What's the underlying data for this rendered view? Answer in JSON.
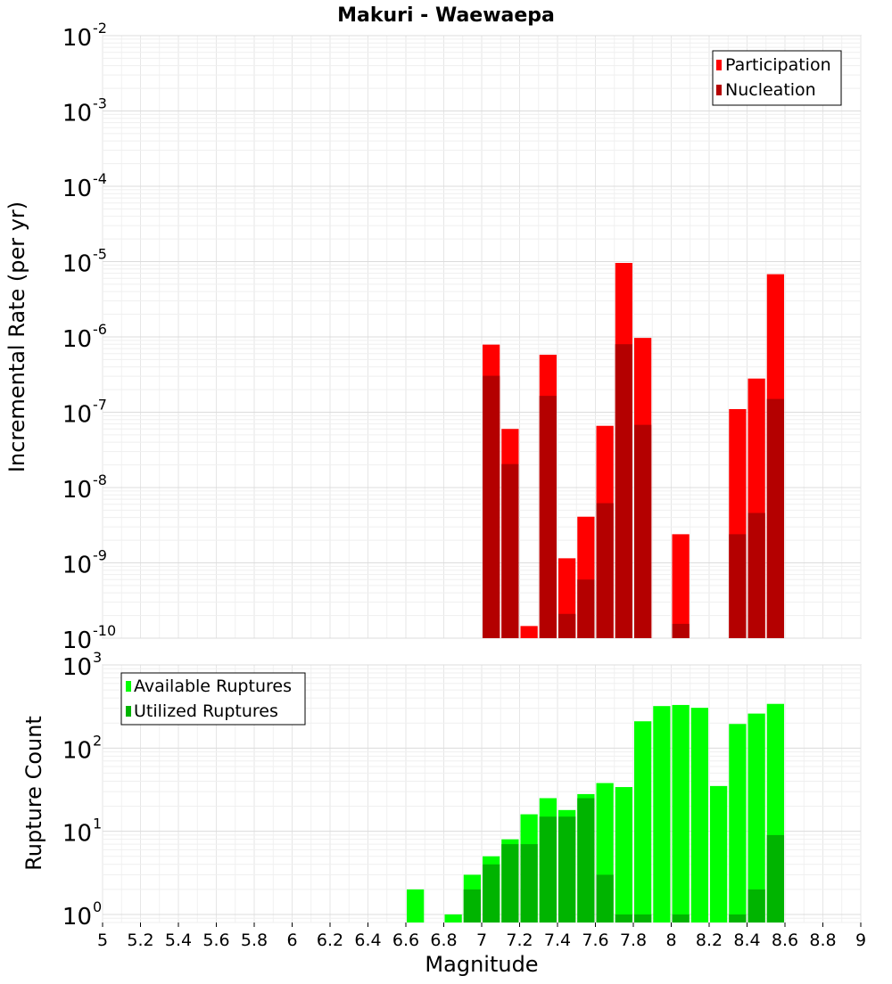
{
  "chart_data": [
    {
      "type": "bar",
      "title": "Makuri - Waewaepa",
      "ylabel": "Incremental Rate (per yr)",
      "xlabel": "",
      "y_scale": "log",
      "ylim": [
        1e-10,
        0.01
      ],
      "xlim": [
        5,
        9
      ],
      "y_tick_labels": [
        {
          "base": "10",
          "exp": "-2"
        },
        {
          "base": "10",
          "exp": "-3"
        },
        {
          "base": "10",
          "exp": "-4"
        },
        {
          "base": "10",
          "exp": "-5"
        },
        {
          "base": "10",
          "exp": "-6"
        },
        {
          "base": "10",
          "exp": "-7"
        },
        {
          "base": "10",
          "exp": "-8"
        },
        {
          "base": "10",
          "exp": "-9"
        },
        {
          "base": "10",
          "exp": "-10"
        }
      ],
      "grid": true,
      "legend": {
        "position": "top-right"
      },
      "series": [
        {
          "name": "Participation",
          "color": "#ff0000",
          "x": [
            7.05,
            7.15,
            7.25,
            7.35,
            7.45,
            7.55,
            7.65,
            7.75,
            7.85,
            8.05,
            8.35,
            8.45,
            8.55
          ],
          "values": [
            7.9e-07,
            6e-08,
            1.45e-10,
            5.8e-07,
            1.15e-09,
            4.1e-09,
            6.6e-08,
            9.6e-06,
            9.7e-07,
            2.4e-09,
            1.1e-07,
            2.8e-07,
            6.8e-06
          ]
        },
        {
          "name": "Nucleation",
          "color": "#b40000",
          "x": [
            7.05,
            7.15,
            7.35,
            7.45,
            7.55,
            7.65,
            7.75,
            7.85,
            8.05,
            8.35,
            8.45,
            8.55
          ],
          "values": [
            3.05e-07,
            2.05e-08,
            1.65e-07,
            2.1e-10,
            6e-10,
            6.2e-09,
            8e-07,
            6.8e-08,
            1.55e-10,
            2.4e-09,
            4.6e-09,
            1.5e-07
          ]
        }
      ]
    },
    {
      "type": "bar",
      "title": "",
      "ylabel": "Rupture Count",
      "xlabel": "Magnitude",
      "y_scale": "log",
      "ylim": [
        0.8,
        1000
      ],
      "xlim": [
        5,
        9
      ],
      "x_ticks": [
        "5",
        "5.2",
        "5.4",
        "5.6",
        "5.8",
        "6",
        "6.2",
        "6.4",
        "6.6",
        "6.8",
        "7",
        "7.2",
        "7.4",
        "7.6",
        "7.8",
        "8",
        "8.2",
        "8.4",
        "8.6",
        "8.8",
        "9"
      ],
      "y_tick_labels": [
        {
          "base": "10",
          "exp": "3"
        },
        {
          "base": "10",
          "exp": "2"
        },
        {
          "base": "10",
          "exp": "1"
        },
        {
          "base": "10",
          "exp": "0"
        }
      ],
      "grid": true,
      "legend": {
        "position": "top-left"
      },
      "series": [
        {
          "name": "Available Ruptures",
          "color": "#00ff00",
          "x": [
            6.65,
            6.85,
            6.95,
            7.05,
            7.15,
            7.25,
            7.35,
            7.45,
            7.55,
            7.65,
            7.75,
            7.85,
            7.95,
            8.05,
            8.15,
            8.25,
            8.35,
            8.45,
            8.55
          ],
          "values": [
            2,
            1,
            3,
            5,
            8,
            16,
            25,
            18,
            28,
            38,
            34,
            210,
            320,
            330,
            305,
            35,
            195,
            260,
            340
          ]
        },
        {
          "name": "Utilized Ruptures",
          "color": "#00b400",
          "x": [
            6.95,
            7.05,
            7.15,
            7.25,
            7.35,
            7.45,
            7.55,
            7.65,
            7.75,
            7.85,
            8.05,
            8.35,
            8.45,
            8.55
          ],
          "values": [
            2,
            4,
            7,
            7,
            15,
            15,
            25,
            3,
            1,
            1,
            1,
            1,
            2,
            9
          ]
        }
      ]
    }
  ]
}
